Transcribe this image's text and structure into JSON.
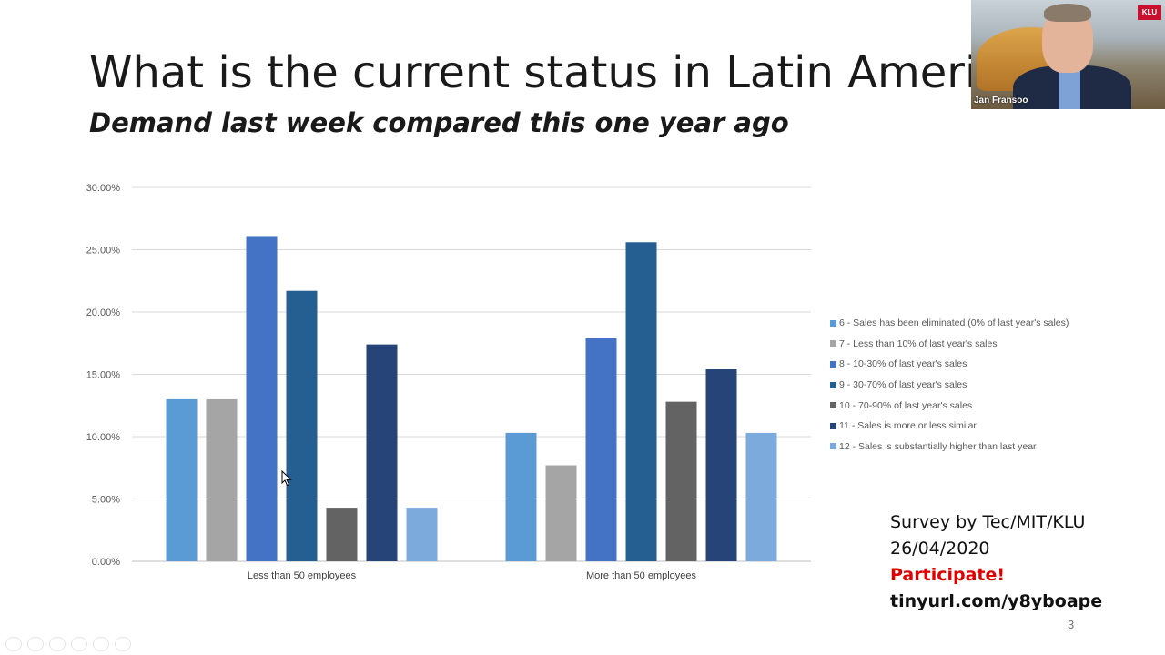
{
  "slide": {
    "title": "What is the current status in Latin America",
    "subtitle": "Demand last week compared this one year ago",
    "page_number": "3"
  },
  "survey": {
    "line1": "Survey by Tec/MIT/KLU",
    "line2": "26/04/2020",
    "cta": "Participate!",
    "link": "tinyurl.com/y8yboape"
  },
  "webcam": {
    "participant_name": "Jan Fransoo",
    "logo_text": "KLU"
  },
  "chart_data": {
    "type": "bar",
    "categories": [
      "Less than 50 employees",
      "More than 50 employees"
    ],
    "ylim": [
      0,
      30
    ],
    "yticks": [
      "0.00%",
      "5.00%",
      "10.00%",
      "15.00%",
      "20.00%",
      "25.00%",
      "30.00%"
    ],
    "grid": true,
    "legend_position": "right",
    "series": [
      {
        "name": "6 - Sales has been eliminated (0% of last year's sales)",
        "color": "#5b9bd5",
        "values": [
          13.0,
          10.3
        ]
      },
      {
        "name": "7 - Less than 10% of last year's sales",
        "color": "#a5a5a5",
        "values": [
          13.0,
          7.7
        ]
      },
      {
        "name": "8 - 10-30% of last year's sales",
        "color": "#4472c4",
        "values": [
          26.1,
          17.9
        ]
      },
      {
        "name": "9 - 30-70% of last year's sales",
        "color": "#255e91",
        "values": [
          21.7,
          25.6
        ]
      },
      {
        "name": "10 - 70-90% of last year's sales",
        "color": "#636363",
        "values": [
          4.3,
          12.8
        ]
      },
      {
        "name": "11 - Sales is more or less similar",
        "color": "#264478",
        "values": [
          17.4,
          15.4
        ]
      },
      {
        "name": "12 - Sales is substantially higher than last year",
        "color": "#7caadd",
        "values": [
          4.3,
          10.3
        ]
      }
    ]
  }
}
